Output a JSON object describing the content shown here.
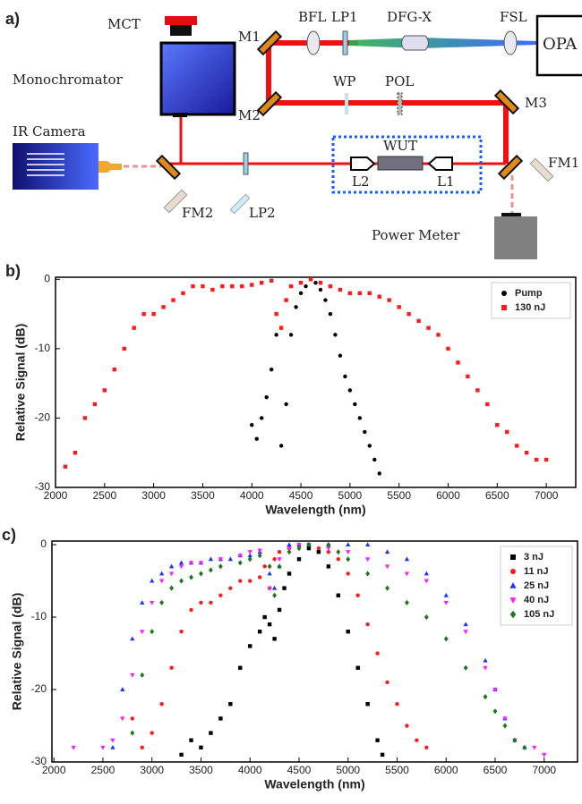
{
  "diagram": {
    "panel": "a)",
    "mct": "MCT",
    "monochromator": "Monochromator",
    "m1": "M1",
    "bfl": "BFL",
    "lp1": "LP1",
    "dfg": "DFG-X",
    "fsl": "FSL",
    "opa": "OPA",
    "m2": "M2",
    "wp": "WP",
    "pol": "POL",
    "m3": "M3",
    "ir_camera": "IR Camera",
    "wut": "WUT",
    "fm1": "FM1",
    "fm2": "FM2",
    "lp2": "LP2",
    "l2": "L2",
    "l1": "L1",
    "power_meter": "Power Meter"
  },
  "chart_data": [
    {
      "type": "scatter",
      "title": "b)",
      "x_label": "Wavelength (nm)",
      "y_label": "Relative Signal (dB)",
      "xlim": [
        2000,
        7300
      ],
      "ylim": [
        -30,
        0.3
      ],
      "xticks": [
        2000,
        2500,
        3000,
        3500,
        4000,
        4500,
        5000,
        5500,
        6000,
        6500,
        7000
      ],
      "yticks": [
        0,
        -10,
        -20,
        -30
      ],
      "legend": "upper right",
      "series": [
        {
          "name": "Pump",
          "color": "#000000",
          "marker": "circle",
          "x": [
            4000,
            4050,
            4100,
            4150,
            4200,
            4250,
            4300,
            4350,
            4400,
            4450,
            4500,
            4550,
            4600,
            4650,
            4700,
            4750,
            4800,
            4850,
            4900,
            4950,
            5000,
            5050,
            5100,
            5150,
            5200,
            5250,
            5300
          ],
          "values": [
            -21,
            -23,
            -20,
            -17,
            -13,
            -8,
            -24,
            -18,
            -8,
            -4,
            -2,
            -1,
            0,
            -0.5,
            -1.5,
            -3,
            -5,
            -8,
            -11,
            -14,
            -16,
            -18,
            -20,
            -22,
            -24,
            -26,
            -28
          ]
        },
        {
          "name": "130 nJ",
          "color": "#ff1a1a",
          "marker": "square",
          "x": [
            2100,
            2200,
            2300,
            2400,
            2500,
            2600,
            2700,
            2800,
            2900,
            3000,
            3100,
            3200,
            3300,
            3400,
            3500,
            3600,
            3700,
            3800,
            3900,
            4000,
            4100,
            4200,
            4250,
            4300,
            4350,
            4400,
            4500,
            4600,
            4700,
            4800,
            4900,
            5000,
            5100,
            5200,
            5300,
            5400,
            5500,
            5600,
            5700,
            5800,
            5900,
            6000,
            6100,
            6200,
            6300,
            6400,
            6500,
            6600,
            6700,
            6800,
            6900,
            7000
          ],
          "values": [
            -27,
            -25,
            -20,
            -18,
            -16,
            -13,
            -10,
            -7,
            -5,
            -5,
            -4,
            -3,
            -2,
            -1,
            -1,
            -1.5,
            -1,
            -1,
            -1,
            -0.8,
            -0.5,
            -0.2,
            -5,
            -7,
            -3,
            -1,
            -0.5,
            0,
            -0.5,
            -1,
            -1.5,
            -2,
            -2,
            -2,
            -2.5,
            -3,
            -4,
            -5,
            -6,
            -7,
            -8,
            -10,
            -12,
            -14,
            -16,
            -18,
            -21,
            -22,
            -24,
            -25,
            -26,
            -26
          ]
        }
      ]
    },
    {
      "type": "scatter",
      "title": "c)",
      "x_label": "Wavelength (nm)",
      "y_label": "Relative Signal (dB)",
      "xlim": [
        1980,
        7340
      ],
      "ylim": [
        -30,
        0.5
      ],
      "xticks": [
        2000,
        2500,
        3000,
        3500,
        4000,
        4500,
        5000,
        5500,
        6000,
        6500,
        7000
      ],
      "yticks": [
        0,
        -10,
        -20,
        -30
      ],
      "legend": "upper right",
      "series": [
        {
          "name": "3 nJ",
          "color": "#000000",
          "marker": "square",
          "x": [
            3300,
            3400,
            3500,
            3600,
            3700,
            3800,
            3900,
            4000,
            4100,
            4150,
            4200,
            4250,
            4300,
            4350,
            4400,
            4500,
            4600,
            4700,
            4800,
            4900,
            5000,
            5100,
            5200,
            5300,
            5350
          ],
          "values": [
            -29,
            -27,
            -28,
            -26,
            -24,
            -22,
            -17,
            -14,
            -12,
            -10,
            -11,
            -13,
            -9,
            -6,
            -4,
            -2,
            -0.5,
            -1,
            -3,
            -7,
            -12,
            -17,
            -22,
            -27,
            -29
          ]
        },
        {
          "name": "11 nJ",
          "color": "#ff1a1a",
          "marker": "circle",
          "x": [
            2800,
            2900,
            3000,
            3100,
            3200,
            3300,
            3400,
            3500,
            3600,
            3700,
            3800,
            3900,
            4000,
            4100,
            4150,
            4200,
            4250,
            4300,
            4400,
            4500,
            4600,
            4700,
            4800,
            4900,
            5000,
            5100,
            5200,
            5300,
            5400,
            5500,
            5600,
            5700,
            5800
          ],
          "values": [
            -24,
            -28,
            -26,
            -22,
            -17,
            -12,
            -9,
            -8,
            -8,
            -7,
            -6,
            -5,
            -5,
            -4.5,
            -3,
            -6,
            -2,
            -1,
            -0.5,
            -0.2,
            0,
            -0.5,
            -1,
            -2,
            -4,
            -7,
            -11,
            -15,
            -19,
            -22,
            -25,
            -27,
            -28
          ]
        },
        {
          "name": "25 nJ",
          "color": "#1a33ff",
          "marker": "triangle",
          "x": [
            2600,
            2700,
            2800,
            2900,
            3000,
            3100,
            3200,
            3300,
            3400,
            3500,
            3600,
            3700,
            3800,
            3900,
            4000,
            4100,
            4200,
            4250,
            4300,
            4400,
            4500,
            4600,
            4800,
            5000,
            5200,
            5400,
            5600,
            5800,
            6000,
            6200,
            6400,
            6500,
            6600,
            6700,
            6800
          ],
          "values": [
            -28,
            -20,
            -13,
            -8,
            -5,
            -4,
            -3,
            -2.5,
            -2.5,
            -2.5,
            -2,
            -2,
            -2,
            -1.5,
            -1.5,
            -1,
            -4,
            -6,
            -3,
            0,
            0,
            0,
            0,
            0,
            0,
            -1,
            -2,
            -4,
            -7,
            -11,
            -16,
            -20,
            -24,
            -27,
            -28
          ]
        },
        {
          "name": "40 nJ",
          "color": "#ff1aff",
          "marker": "triangle-down",
          "x": [
            2200,
            2500,
            2600,
            2700,
            2800,
            2900,
            3000,
            3100,
            3200,
            3300,
            3400,
            3500,
            3700,
            3900,
            4000,
            4100,
            4200,
            4300,
            4400,
            4500,
            4600,
            4800,
            5000,
            5200,
            5400,
            5600,
            5800,
            6000,
            6200,
            6400,
            6500,
            6600,
            6700,
            6900,
            7000
          ],
          "values": [
            -28,
            -28,
            -27,
            -24,
            -18,
            -12,
            -8,
            -5,
            -4,
            -3,
            -2.5,
            -2.5,
            -2,
            -1.5,
            -1,
            -0.8,
            -6,
            -2,
            -0.5,
            0,
            0,
            -0.5,
            -1,
            -2,
            -3,
            -4,
            -5,
            -8,
            -12,
            -17,
            -20,
            -24,
            -27,
            -28,
            -29
          ]
        },
        {
          "name": "105 nJ",
          "color": "#1a7a1a",
          "marker": "diamond",
          "x": [
            2800,
            2900,
            3000,
            3100,
            3200,
            3300,
            3400,
            3500,
            3600,
            3700,
            3900,
            4000,
            4100,
            4200,
            4250,
            4300,
            4400,
            4500,
            4600,
            4800,
            4900,
            5000,
            5200,
            5400,
            5600,
            5800,
            6000,
            6200,
            6400,
            6500,
            6600,
            6700,
            6800
          ],
          "values": [
            -26,
            -18,
            -12,
            -8,
            -6,
            -5,
            -4.5,
            -4,
            -3.5,
            -3,
            -2.5,
            -2,
            -1.5,
            -3,
            -7,
            -3,
            -1,
            -0.5,
            0,
            0,
            -1,
            -2,
            -4,
            -6,
            -8,
            -10,
            -13,
            -17,
            -21,
            -23,
            -25,
            -27,
            -28
          ]
        }
      ]
    }
  ]
}
